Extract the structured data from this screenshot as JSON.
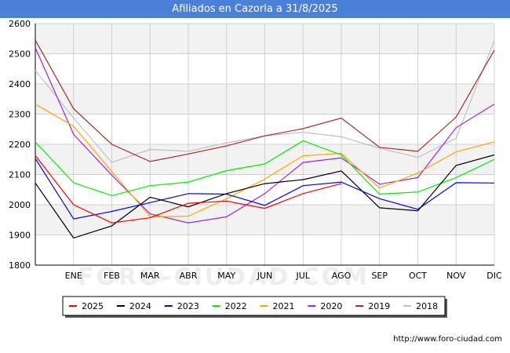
{
  "header": {
    "title": "Afiliados en Cazorla a 31/8/2025"
  },
  "footer": {
    "url": "http://www.foro-ciudad.com"
  },
  "watermark": "FORO-CIUDAD.COM",
  "colors": {
    "title_bar": "#4a80d8",
    "band": "#f2f2f2",
    "grid": "#d0d0d0"
  },
  "chart_data": {
    "type": "line",
    "title": "Afiliados en Cazorla a 31/8/2025",
    "categories": [
      "",
      "ENE",
      "FEB",
      "MAR",
      "ABR",
      "MAY",
      "JUN",
      "JUL",
      "AGO",
      "SEP",
      "OCT",
      "NOV",
      "DIC"
    ],
    "ylim": [
      1800,
      2600
    ],
    "yticks": [
      1800,
      1900,
      2000,
      2100,
      2200,
      2300,
      2400,
      2500,
      2600
    ],
    "grid": true,
    "legend_position": "bottom",
    "series": [
      {
        "name": "2025",
        "color": "#ff0000",
        "values": [
          2163,
          2000,
          1940,
          1957,
          2005,
          2012,
          1988,
          2037,
          2070,
          null,
          null,
          null,
          null
        ]
      },
      {
        "name": "2024",
        "color": "#000000",
        "values": [
          2072,
          1890,
          1930,
          2025,
          1993,
          2037,
          2070,
          2083,
          2112,
          1990,
          1980,
          2130,
          2165
        ]
      },
      {
        "name": "2023",
        "color": "#0000ff",
        "values": [
          2153,
          1953,
          1978,
          2007,
          2037,
          2035,
          1998,
          2063,
          2075,
          2020,
          1985,
          2073,
          2072
        ]
      },
      {
        "name": "2022",
        "color": "#00ee00",
        "values": [
          2208,
          2073,
          2030,
          2063,
          2075,
          2113,
          2135,
          2212,
          2165,
          2035,
          2042,
          2090,
          2150
        ]
      },
      {
        "name": "2021",
        "color": "#ffa500",
        "values": [
          2333,
          2260,
          2110,
          1960,
          1962,
          2020,
          2085,
          2162,
          2170,
          2055,
          2105,
          2175,
          2208
        ]
      },
      {
        "name": "2020",
        "color": "#a020f0",
        "values": [
          2520,
          2233,
          2098,
          1970,
          1940,
          1960,
          2037,
          2140,
          2155,
          2068,
          2090,
          2255,
          2333
        ]
      },
      {
        "name": "2019",
        "color": "#a52a2a",
        "values": [
          2545,
          2318,
          2200,
          2143,
          2168,
          2195,
          2228,
          2252,
          2287,
          2190,
          2177,
          2290,
          2512
        ]
      },
      {
        "name": "2018",
        "color": "#c0c0c0",
        "values": [
          2445,
          2287,
          2140,
          2183,
          2177,
          2205,
          2228,
          2240,
          2225,
          2187,
          2157,
          2220,
          2543
        ]
      }
    ]
  }
}
